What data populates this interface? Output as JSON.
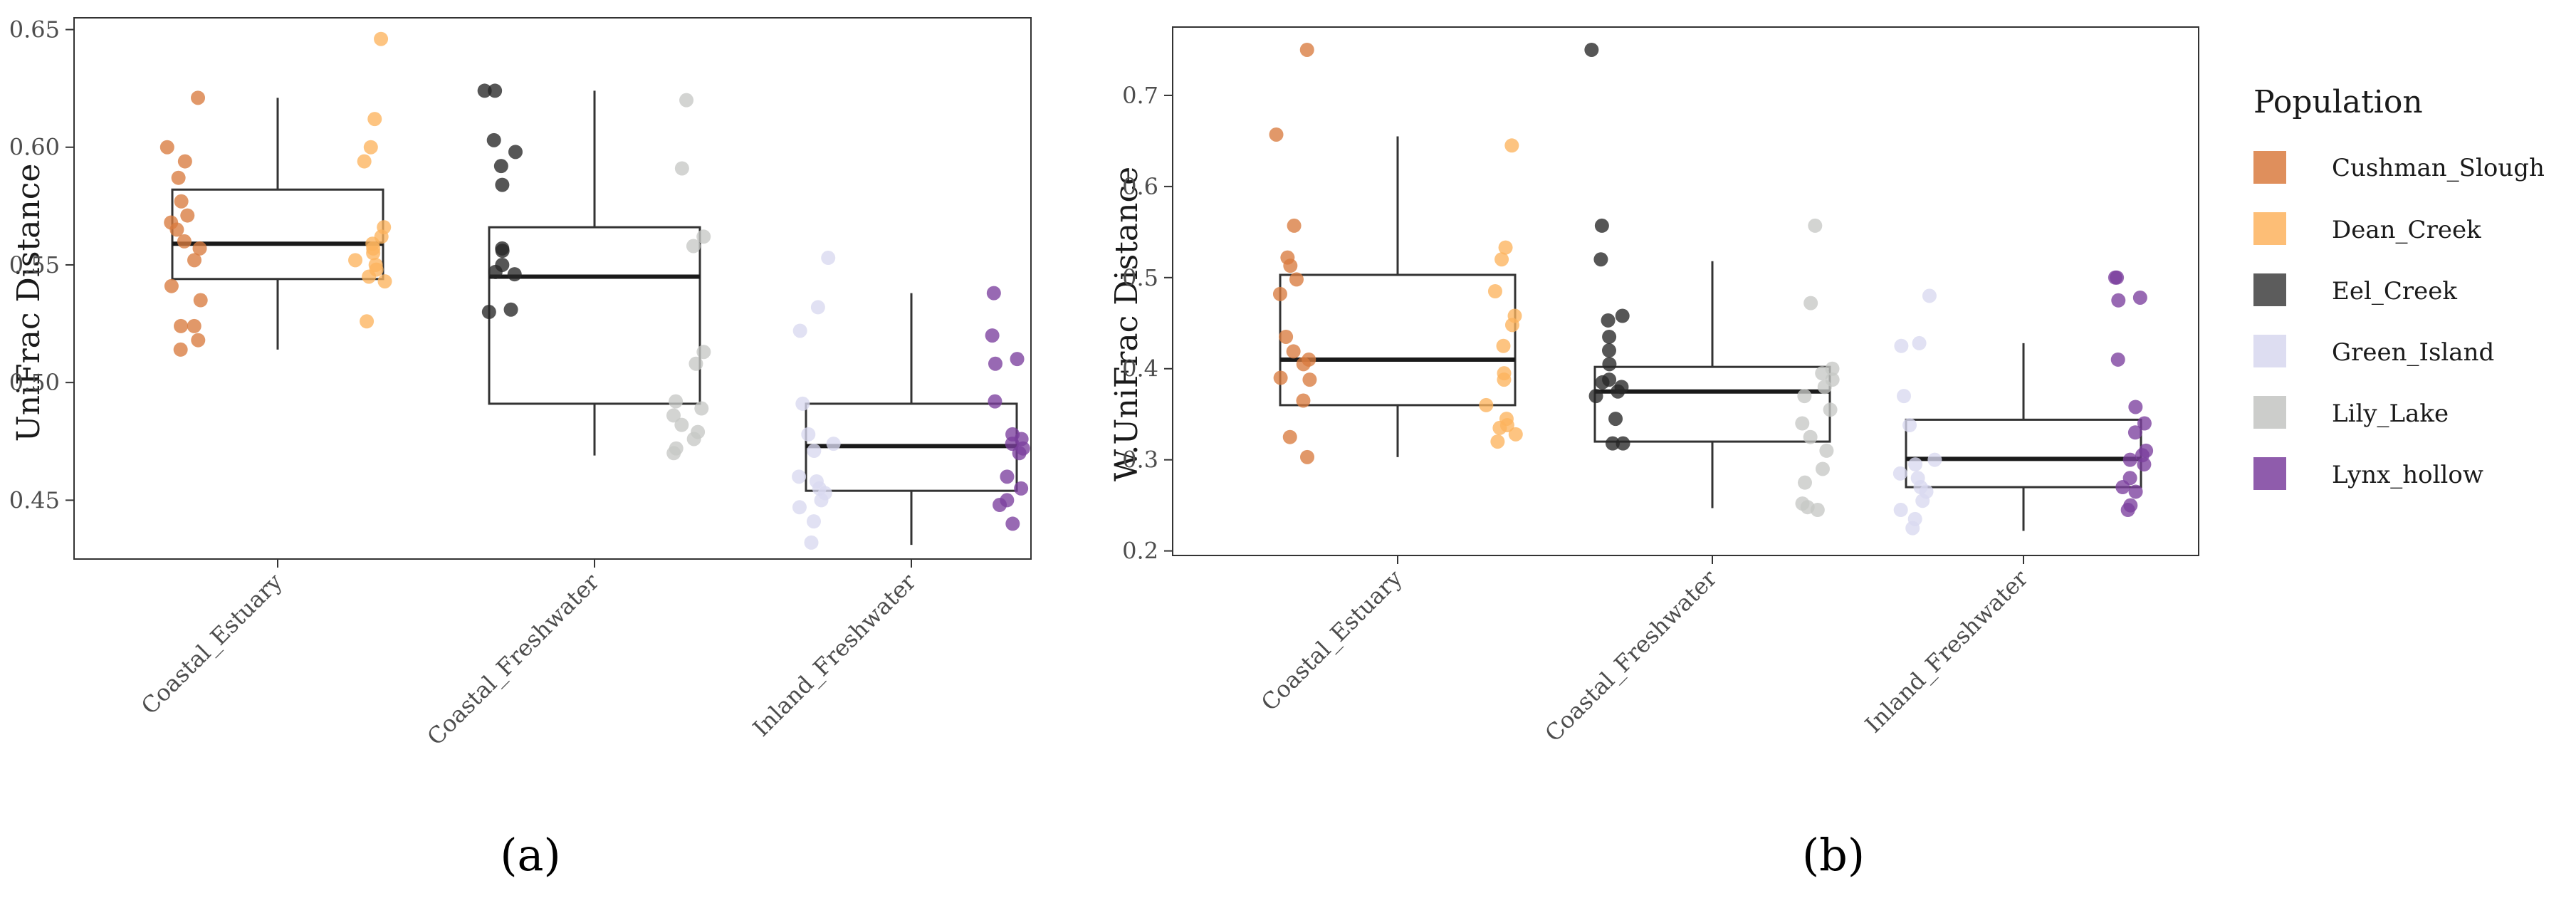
{
  "chart_data": [
    {
      "type": "box",
      "panel_label": "(a)",
      "ylabel": "UniFrac Distance",
      "xlabel": "",
      "ylim": [
        0.425,
        0.655
      ],
      "yticks": [
        0.45,
        0.5,
        0.55,
        0.6,
        0.65
      ],
      "ytick_labels": [
        "0.45",
        "0.50",
        "0.55",
        "0.60",
        "0.65"
      ],
      "categories": [
        "Coastal_Estuary",
        "Coastal_Freshwater",
        "Inland_Freshwater"
      ],
      "boxes": [
        {
          "category": "Coastal_Estuary",
          "q1": 0.544,
          "median": 0.559,
          "q3": 0.582,
          "whisker_low": 0.514,
          "whisker_high": 0.621
        },
        {
          "category": "Coastal_Freshwater",
          "q1": 0.491,
          "median": 0.545,
          "q3": 0.566,
          "whisker_low": 0.469,
          "whisker_high": 0.624
        },
        {
          "category": "Inland_Freshwater",
          "q1": 0.454,
          "median": 0.473,
          "q3": 0.491,
          "whisker_low": 0.431,
          "whisker_high": 0.538
        }
      ],
      "series": [
        {
          "name": "Cushman_Slough",
          "category": "Coastal_Estuary",
          "values": [
            0.621,
            0.6,
            0.594,
            0.587,
            0.577,
            0.571,
            0.568,
            0.565,
            0.56,
            0.557,
            0.552,
            0.541,
            0.535,
            0.524,
            0.524,
            0.518,
            0.514
          ]
        },
        {
          "category": "Coastal_Estuary",
          "name": "Dean_Creek",
          "values": [
            0.646,
            0.612,
            0.6,
            0.594,
            0.566,
            0.562,
            0.559,
            0.557,
            0.555,
            0.552,
            0.55,
            0.548,
            0.545,
            0.543,
            0.526
          ]
        },
        {
          "category": "Coastal_Freshwater",
          "name": "Eel_Creek",
          "values": [
            0.624,
            0.624,
            0.603,
            0.598,
            0.592,
            0.584,
            0.557,
            0.556,
            0.55,
            0.547,
            0.546,
            0.531,
            0.53
          ]
        },
        {
          "category": "Coastal_Freshwater",
          "name": "Lily_Lake",
          "values": [
            0.62,
            0.591,
            0.562,
            0.558,
            0.513,
            0.508,
            0.492,
            0.489,
            0.486,
            0.482,
            0.479,
            0.476,
            0.472,
            0.47
          ]
        },
        {
          "category": "Inland_Freshwater",
          "name": "Green_Island",
          "values": [
            0.553,
            0.532,
            0.522,
            0.491,
            0.478,
            0.474,
            0.471,
            0.46,
            0.458,
            0.455,
            0.453,
            0.45,
            0.447,
            0.441,
            0.432
          ]
        },
        {
          "category": "Inland_Freshwater",
          "name": "Lynx_hollow",
          "values": [
            0.538,
            0.52,
            0.51,
            0.508,
            0.492,
            0.478,
            0.476,
            0.474,
            0.472,
            0.47,
            0.46,
            0.455,
            0.45,
            0.448,
            0.44
          ]
        }
      ]
    },
    {
      "type": "box",
      "panel_label": "(b)",
      "ylabel": "W.UniFrac Distance",
      "xlabel": "",
      "ylim": [
        0.195,
        0.775
      ],
      "yticks": [
        0.2,
        0.3,
        0.4,
        0.5,
        0.6,
        0.7
      ],
      "ytick_labels": [
        "0.2",
        "0.3",
        "0.4",
        "0.5",
        "0.6",
        "0.7"
      ],
      "categories": [
        "Coastal_Estuary",
        "Coastal_Freshwater",
        "Inland_Freshwater"
      ],
      "boxes": [
        {
          "category": "Coastal_Estuary",
          "q1": 0.36,
          "median": 0.41,
          "q3": 0.503,
          "whisker_low": 0.303,
          "whisker_high": 0.655
        },
        {
          "category": "Coastal_Freshwater",
          "q1": 0.32,
          "median": 0.375,
          "q3": 0.402,
          "whisker_low": 0.247,
          "whisker_high": 0.518
        },
        {
          "category": "Inland_Freshwater",
          "q1": 0.27,
          "median": 0.301,
          "q3": 0.344,
          "whisker_low": 0.222,
          "whisker_high": 0.428
        }
      ],
      "series": [
        {
          "category": "Coastal_Estuary",
          "name": "Cushman_Slough",
          "values": [
            0.75,
            0.657,
            0.557,
            0.522,
            0.513,
            0.498,
            0.482,
            0.435,
            0.419,
            0.41,
            0.405,
            0.39,
            0.388,
            0.365,
            0.325,
            0.303
          ]
        },
        {
          "category": "Coastal_Estuary",
          "name": "Dean_Creek",
          "values": [
            0.645,
            0.533,
            0.52,
            0.485,
            0.458,
            0.448,
            0.425,
            0.395,
            0.388,
            0.36,
            0.345,
            0.338,
            0.335,
            0.328,
            0.32
          ]
        },
        {
          "category": "Coastal_Freshwater",
          "name": "Eel_Creek",
          "values": [
            0.75,
            0.557,
            0.52,
            0.458,
            0.453,
            0.435,
            0.42,
            0.405,
            0.388,
            0.385,
            0.38,
            0.375,
            0.37,
            0.345,
            0.318,
            0.318
          ]
        },
        {
          "category": "Coastal_Freshwater",
          "name": "Lily_Lake",
          "values": [
            0.557,
            0.472,
            0.4,
            0.395,
            0.388,
            0.38,
            0.37,
            0.355,
            0.34,
            0.325,
            0.31,
            0.29,
            0.275,
            0.252,
            0.248,
            0.245
          ]
        },
        {
          "category": "Inland_Freshwater",
          "name": "Green_Island",
          "values": [
            0.48,
            0.428,
            0.425,
            0.37,
            0.338,
            0.3,
            0.295,
            0.285,
            0.28,
            0.27,
            0.265,
            0.255,
            0.245,
            0.235,
            0.225
          ]
        },
        {
          "category": "Inland_Freshwater",
          "name": "Lynx_hollow",
          "values": [
            0.5,
            0.5,
            0.478,
            0.475,
            0.41,
            0.358,
            0.34,
            0.33,
            0.31,
            0.305,
            0.3,
            0.295,
            0.28,
            0.27,
            0.265,
            0.25,
            0.245
          ]
        }
      ]
    }
  ],
  "legend": {
    "title": "Population",
    "items": [
      {
        "label": "Cushman_Slough",
        "color": "#d97b3f"
      },
      {
        "label": "Dean_Creek",
        "color": "#fdb35e"
      },
      {
        "label": "Eel_Creek",
        "color": "#262626"
      },
      {
        "label": "Green_Island",
        "color": "#d9d9ef"
      },
      {
        "label": "Lily_Lake",
        "color": "#c6c8c5"
      },
      {
        "label": "Lynx_hollow",
        "color": "#7b3f9e"
      }
    ]
  }
}
